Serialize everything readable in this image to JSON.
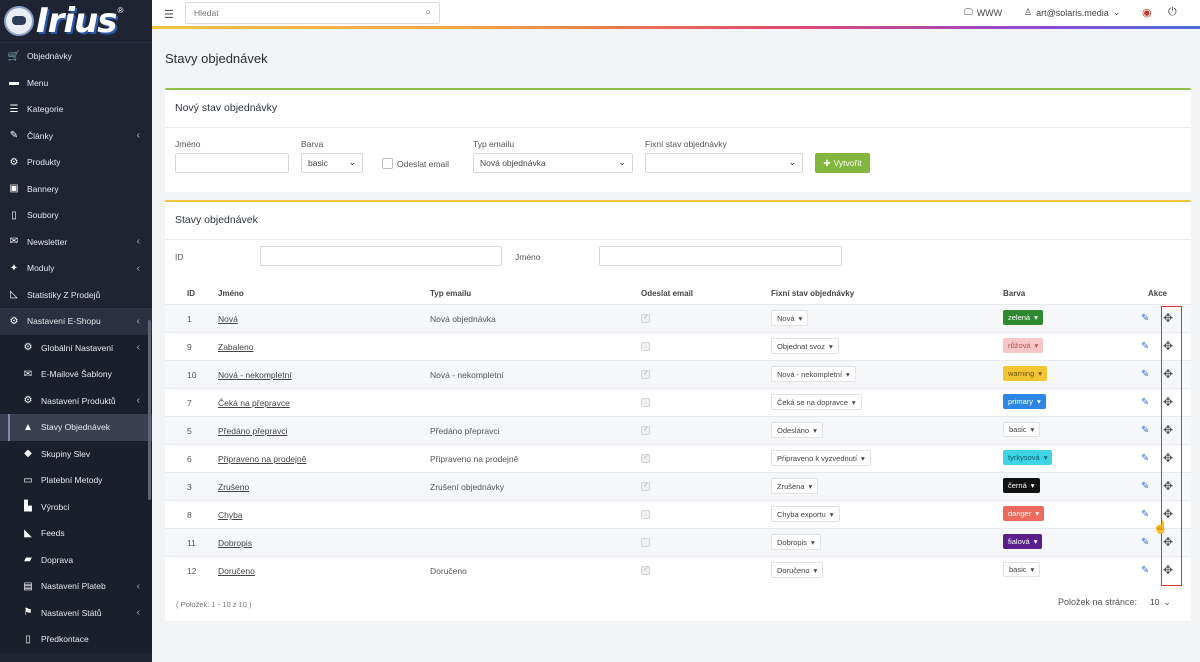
{
  "brand": {
    "logo_text": "Irius",
    "trademark": "®"
  },
  "sidebar": {
    "items": [
      {
        "label": "Objednávky",
        "icon": "cart-icon",
        "glyph": "🛒",
        "chevron": false
      },
      {
        "label": "Menu",
        "icon": "folder-icon",
        "glyph": "▬",
        "chevron": false
      },
      {
        "label": "Kategorie",
        "icon": "list-icon",
        "glyph": "☰",
        "chevron": false
      },
      {
        "label": "Články",
        "icon": "pen-icon",
        "glyph": "✎",
        "chevron": true
      },
      {
        "label": "Produkty",
        "icon": "gear-icon",
        "glyph": "⚙",
        "chevron": false
      },
      {
        "label": "Bannery",
        "icon": "image-icon",
        "glyph": "▣",
        "chevron": false
      },
      {
        "label": "Soubory",
        "icon": "file-icon",
        "glyph": "▯",
        "chevron": false
      },
      {
        "label": "Newsletter",
        "icon": "mail-icon",
        "glyph": "✉",
        "chevron": true
      },
      {
        "label": "Moduly",
        "icon": "puzzle-icon",
        "glyph": "✦",
        "chevron": true
      },
      {
        "label": "Statistiky Z Prodejů",
        "icon": "chart-icon",
        "glyph": "◺",
        "chevron": false
      },
      {
        "label": "Nastavení E-Shopu",
        "icon": "cogs-icon",
        "glyph": "⚙",
        "chevron": true
      }
    ],
    "subitems": [
      {
        "label": "Globální Nastavení",
        "icon": "cog-icon",
        "glyph": "⚙",
        "chevron": true
      },
      {
        "label": "E-Mailové Šablony",
        "icon": "envelope-icon",
        "glyph": "✉",
        "chevron": false
      },
      {
        "label": "Nastavení Produktů",
        "icon": "gear-icon",
        "glyph": "⚙",
        "chevron": true
      },
      {
        "label": "Stavy Objednávek",
        "icon": "flask-icon",
        "glyph": "▲",
        "chevron": false,
        "active": true
      },
      {
        "label": "Skupiny Slev",
        "icon": "tag-icon",
        "glyph": "◆",
        "chevron": false
      },
      {
        "label": "Platební Metody",
        "icon": "card-icon",
        "glyph": "▭",
        "chevron": false
      },
      {
        "label": "Výrobci",
        "icon": "factory-icon",
        "glyph": "▙",
        "chevron": false
      },
      {
        "label": "Feeds",
        "icon": "rss-icon",
        "glyph": "◣",
        "chevron": false
      },
      {
        "label": "Doprava",
        "icon": "truck-icon",
        "glyph": "▰",
        "chevron": false
      },
      {
        "label": "Nastavení Plateb",
        "icon": "wallet-icon",
        "glyph": "▤",
        "chevron": true
      },
      {
        "label": "Nastavení Států",
        "icon": "flag-icon",
        "glyph": "⚑",
        "chevron": true
      },
      {
        "label": "Předkontace",
        "icon": "document-icon",
        "glyph": "▯",
        "chevron": false
      }
    ]
  },
  "topbar": {
    "search_placeholder": "Hledat",
    "www_label": "WWW",
    "user_label": "art@solaris.media"
  },
  "page": {
    "title": "Stavy objednávek"
  },
  "new_state": {
    "title": "Nový stav objednávky",
    "name_label": "Jméno",
    "color_label": "Barva",
    "color_value": "basic",
    "send_email_label": "Odeslat email",
    "email_type_label": "Typ emailu",
    "email_type_value": "Nová objednávka",
    "fixed_state_label": "Fixní stav objednávky",
    "fixed_state_value": "",
    "create_button": "Vytvořit"
  },
  "states_panel": {
    "title": "Stavy objednávek",
    "filter_id_label": "ID",
    "filter_name_label": "Jméno",
    "headers": {
      "id": "ID",
      "name": "Jméno",
      "email_type": "Typ emailu",
      "send_email": "Odeslat email",
      "fixed_state": "Fixní stav objednávky",
      "color": "Barva",
      "actions": "Akce"
    },
    "rows": [
      {
        "id": "1",
        "name": "Nová",
        "email_type": "Nová objednávka",
        "send": true,
        "fixed": "Nová",
        "color": "zelená",
        "bg": "#2e8a2e",
        "fg": "#ffffff"
      },
      {
        "id": "9",
        "name": "Zabaleno",
        "email_type": "",
        "send": false,
        "fixed": "Objednat svoz",
        "color": "růžová",
        "bg": "#f7c6c6",
        "fg": "#c94a4a"
      },
      {
        "id": "10",
        "name": "Nová - nekompletní",
        "email_type": "Nová - nekompletní",
        "send": true,
        "fixed": "Nová - nekompletní",
        "color": "warning",
        "bg": "#f4c533",
        "fg": "#6a5200"
      },
      {
        "id": "7",
        "name": "Čeká na přepravce",
        "email_type": "",
        "send": false,
        "fixed": "Čeká se na dopravce",
        "color": "primary",
        "bg": "#2d86e6",
        "fg": "#ffffff"
      },
      {
        "id": "5",
        "name": "Předáno přepravci",
        "email_type": "Předáno přepravci",
        "send": true,
        "fixed": "Odesláno",
        "color": "basic",
        "bg": "#ffffff",
        "fg": "#444444"
      },
      {
        "id": "6",
        "name": "Připraveno na prodejně",
        "email_type": "Připraveno na prodejně",
        "send": true,
        "fixed": "Připraveno k vyzvednutí",
        "color": "tyrkysová",
        "bg": "#3fd3e8",
        "fg": "#0d5b66"
      },
      {
        "id": "3",
        "name": "Zrušeno",
        "email_type": "Zrušení objednávky",
        "send": true,
        "fixed": "Zrušena",
        "color": "černá",
        "bg": "#111111",
        "fg": "#ffffff"
      },
      {
        "id": "8",
        "name": "Chyba",
        "email_type": "",
        "send": false,
        "fixed": "Chyba exportu",
        "color": "danger",
        "bg": "#ef6a5e",
        "fg": "#ffffff"
      },
      {
        "id": "11",
        "name": "Dobropis",
        "email_type": "",
        "send": false,
        "fixed": "Dobropis",
        "color": "fialová",
        "bg": "#5b1f8c",
        "fg": "#ffffff"
      },
      {
        "id": "12",
        "name": "Doručeno",
        "email_type": "Doručeno",
        "send": true,
        "fixed": "Doručeno",
        "color": "basic",
        "bg": "#ffffff",
        "fg": "#444444"
      }
    ],
    "footer_info": "( Položek: 1 - 10 z 10 )",
    "per_page_label": "Položek na stránce:",
    "per_page_value": "10"
  },
  "colors": {
    "accent_green": "#82b63c",
    "accent_yellow": "#f0c43f",
    "sidebar_bg": "#1f2433",
    "highlight_red": "#e0322f"
  }
}
